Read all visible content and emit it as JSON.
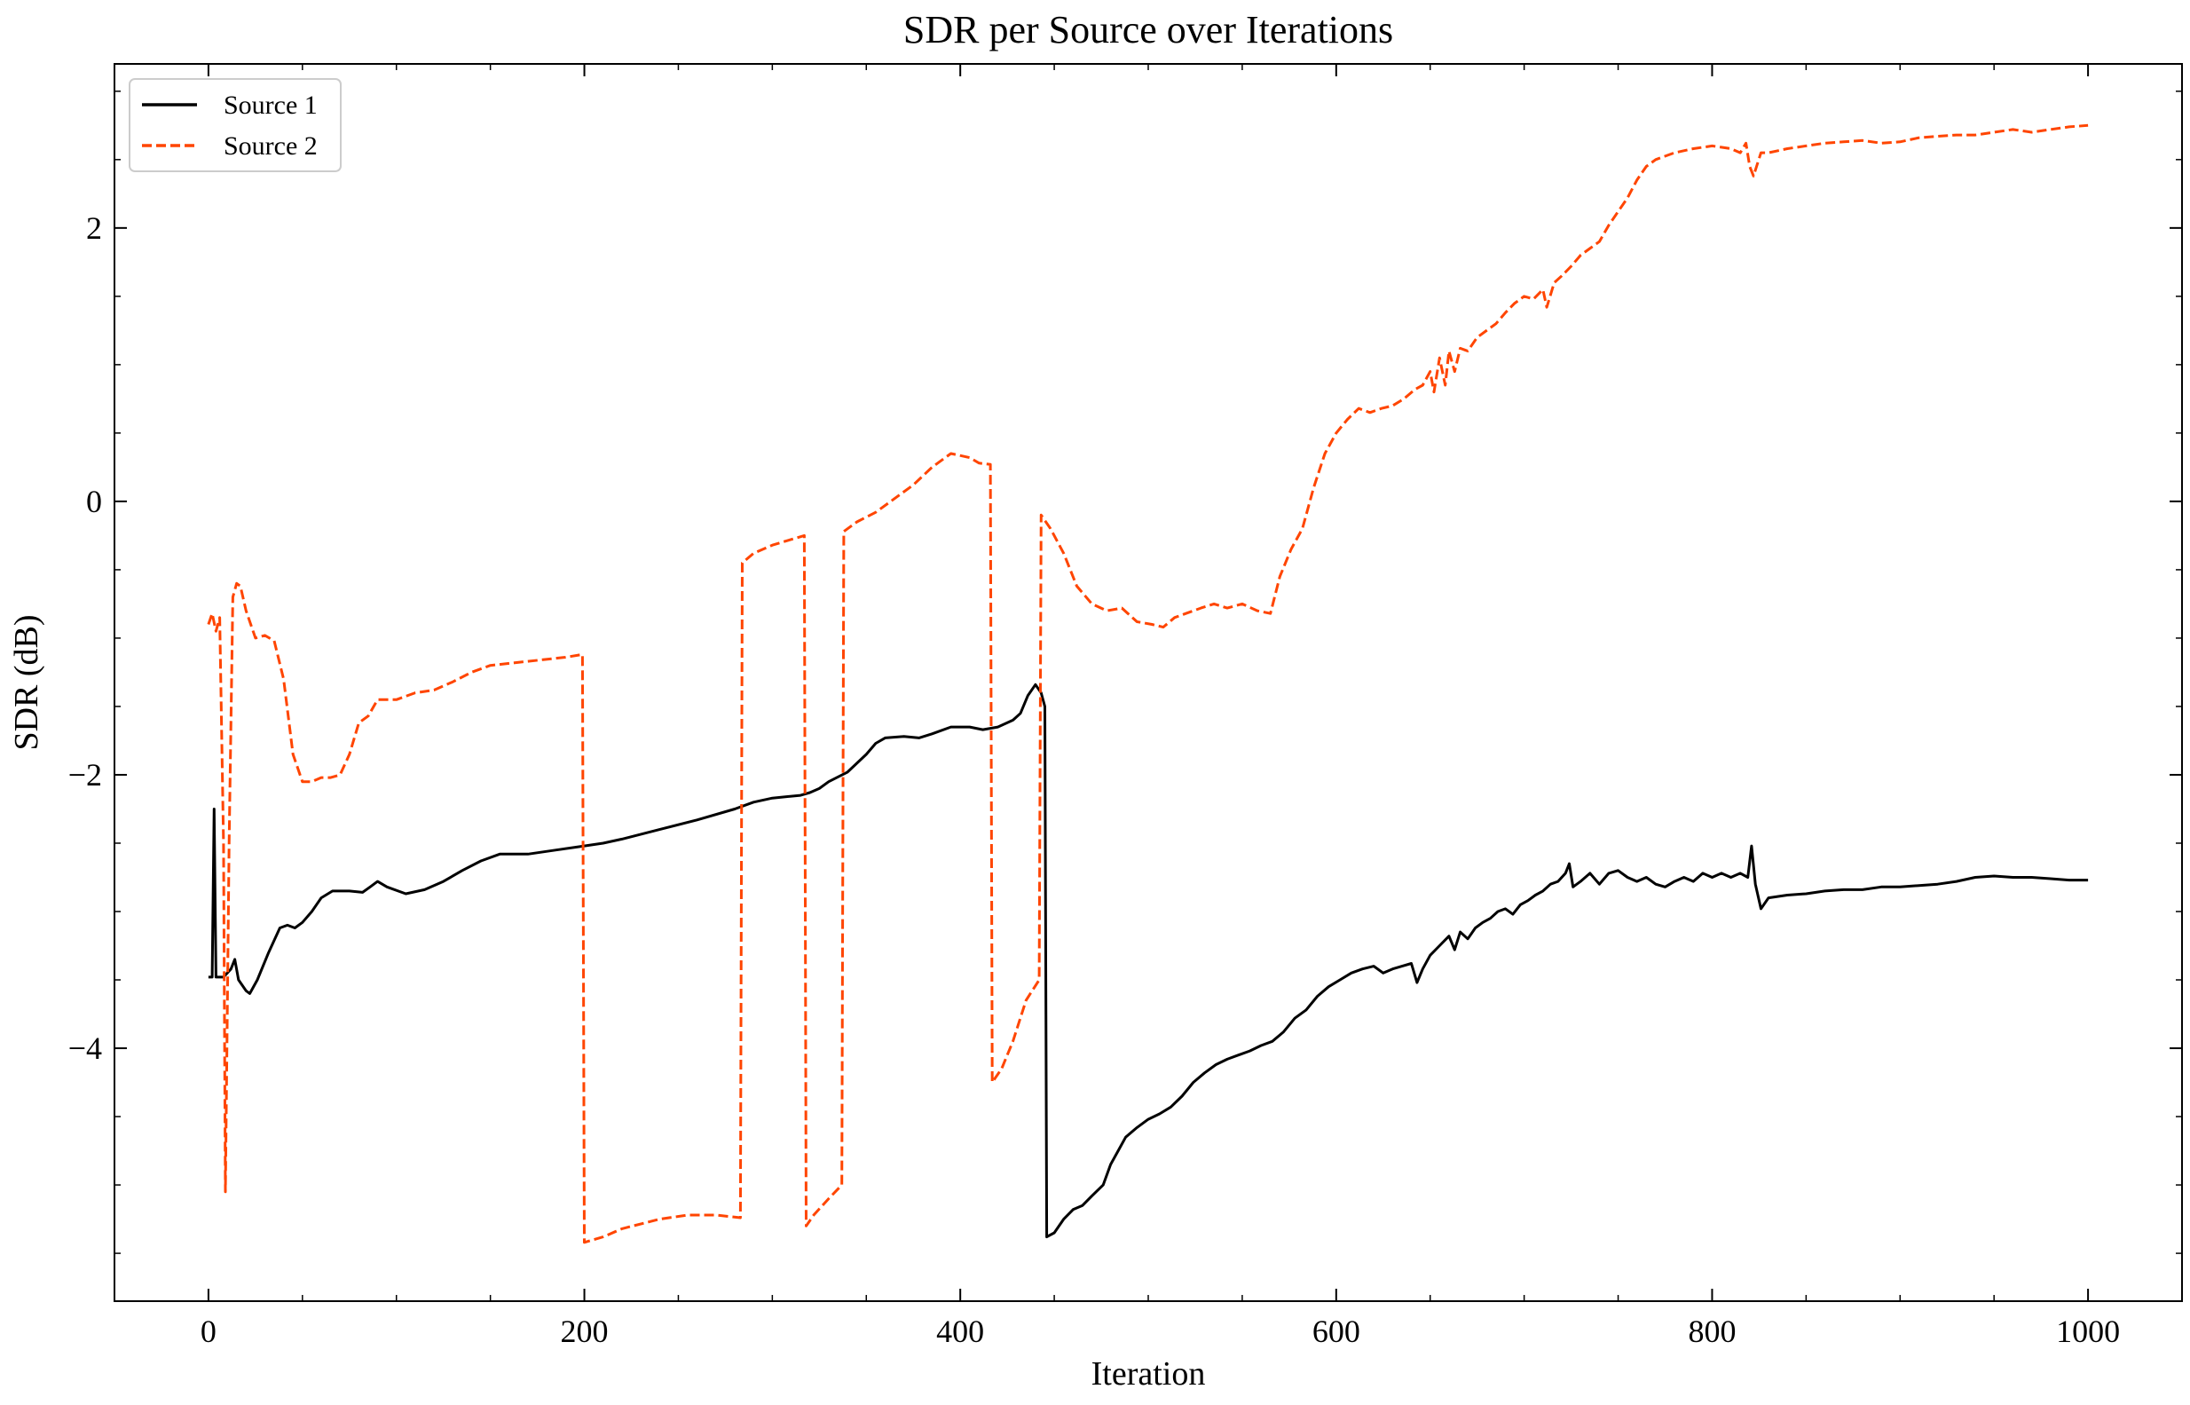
{
  "chart_data": {
    "type": "line",
    "title": "SDR per Source over Iterations",
    "xlabel": "Iteration",
    "ylabel": "SDR (dB)",
    "xlim": [
      -50,
      1050
    ],
    "ylim": [
      -5.85,
      3.2
    ],
    "xticks": [
      0,
      200,
      400,
      600,
      800,
      1000
    ],
    "xtick_labels": [
      "0",
      "200",
      "400",
      "600",
      "800",
      "1000"
    ],
    "yticks": [
      -4,
      -2,
      0,
      2
    ],
    "ytick_labels": [
      "−4",
      "−2",
      "0",
      "2"
    ],
    "grid": false,
    "legend": "top-left",
    "series": [
      {
        "name": "Source 1",
        "color": "#000000",
        "style": "solid",
        "points": [
          [
            0,
            -3.48
          ],
          [
            2,
            -3.48
          ],
          [
            3,
            -2.25
          ],
          [
            4,
            -3.48
          ],
          [
            8,
            -3.48
          ],
          [
            12,
            -3.42
          ],
          [
            14,
            -3.35
          ],
          [
            16,
            -3.5
          ],
          [
            20,
            -3.58
          ],
          [
            22,
            -3.6
          ],
          [
            26,
            -3.5
          ],
          [
            32,
            -3.3
          ],
          [
            38,
            -3.12
          ],
          [
            42,
            -3.1
          ],
          [
            46,
            -3.12
          ],
          [
            50,
            -3.08
          ],
          [
            55,
            -3.0
          ],
          [
            60,
            -2.9
          ],
          [
            66,
            -2.85
          ],
          [
            75,
            -2.85
          ],
          [
            82,
            -2.86
          ],
          [
            86,
            -2.82
          ],
          [
            90,
            -2.78
          ],
          [
            95,
            -2.82
          ],
          [
            105,
            -2.87
          ],
          [
            115,
            -2.84
          ],
          [
            125,
            -2.78
          ],
          [
            135,
            -2.7
          ],
          [
            145,
            -2.63
          ],
          [
            155,
            -2.58
          ],
          [
            170,
            -2.58
          ],
          [
            185,
            -2.55
          ],
          [
            200,
            -2.52
          ],
          [
            210,
            -2.5
          ],
          [
            220,
            -2.47
          ],
          [
            240,
            -2.4
          ],
          [
            260,
            -2.33
          ],
          [
            280,
            -2.25
          ],
          [
            290,
            -2.2
          ],
          [
            300,
            -2.17
          ],
          [
            315,
            -2.15
          ],
          [
            320,
            -2.13
          ],
          [
            325,
            -2.1
          ],
          [
            330,
            -2.05
          ],
          [
            340,
            -1.98
          ],
          [
            350,
            -1.85
          ],
          [
            355,
            -1.77
          ],
          [
            360,
            -1.73
          ],
          [
            370,
            -1.72
          ],
          [
            378,
            -1.73
          ],
          [
            385,
            -1.7
          ],
          [
            395,
            -1.65
          ],
          [
            405,
            -1.65
          ],
          [
            412,
            -1.67
          ],
          [
            420,
            -1.65
          ],
          [
            428,
            -1.6
          ],
          [
            432,
            -1.55
          ],
          [
            436,
            -1.42
          ],
          [
            440,
            -1.34
          ],
          [
            443,
            -1.4
          ],
          [
            445,
            -1.5
          ],
          [
            446,
            -5.38
          ],
          [
            450,
            -5.35
          ],
          [
            455,
            -5.25
          ],
          [
            460,
            -5.18
          ],
          [
            465,
            -5.15
          ],
          [
            470,
            -5.08
          ],
          [
            476,
            -5.0
          ],
          [
            480,
            -4.85
          ],
          [
            484,
            -4.75
          ],
          [
            488,
            -4.65
          ],
          [
            494,
            -4.58
          ],
          [
            500,
            -4.52
          ],
          [
            506,
            -4.48
          ],
          [
            512,
            -4.43
          ],
          [
            518,
            -4.35
          ],
          [
            524,
            -4.25
          ],
          [
            530,
            -4.18
          ],
          [
            536,
            -4.12
          ],
          [
            542,
            -4.08
          ],
          [
            548,
            -4.05
          ],
          [
            554,
            -4.02
          ],
          [
            560,
            -3.98
          ],
          [
            566,
            -3.95
          ],
          [
            572,
            -3.88
          ],
          [
            578,
            -3.78
          ],
          [
            584,
            -3.72
          ],
          [
            590,
            -3.62
          ],
          [
            596,
            -3.55
          ],
          [
            602,
            -3.5
          ],
          [
            608,
            -3.45
          ],
          [
            614,
            -3.42
          ],
          [
            620,
            -3.4
          ],
          [
            625,
            -3.45
          ],
          [
            630,
            -3.42
          ],
          [
            635,
            -3.4
          ],
          [
            640,
            -3.38
          ],
          [
            643,
            -3.52
          ],
          [
            646,
            -3.42
          ],
          [
            650,
            -3.32
          ],
          [
            655,
            -3.25
          ],
          [
            660,
            -3.18
          ],
          [
            663,
            -3.28
          ],
          [
            666,
            -3.15
          ],
          [
            670,
            -3.2
          ],
          [
            674,
            -3.12
          ],
          [
            678,
            -3.08
          ],
          [
            682,
            -3.05
          ],
          [
            686,
            -3.0
          ],
          [
            690,
            -2.98
          ],
          [
            694,
            -3.02
          ],
          [
            698,
            -2.95
          ],
          [
            702,
            -2.92
          ],
          [
            706,
            -2.88
          ],
          [
            710,
            -2.85
          ],
          [
            714,
            -2.8
          ],
          [
            718,
            -2.78
          ],
          [
            722,
            -2.72
          ],
          [
            724,
            -2.65
          ],
          [
            726,
            -2.82
          ],
          [
            730,
            -2.78
          ],
          [
            735,
            -2.72
          ],
          [
            740,
            -2.8
          ],
          [
            745,
            -2.72
          ],
          [
            750,
            -2.7
          ],
          [
            755,
            -2.75
          ],
          [
            760,
            -2.78
          ],
          [
            765,
            -2.75
          ],
          [
            770,
            -2.8
          ],
          [
            775,
            -2.82
          ],
          [
            780,
            -2.78
          ],
          [
            785,
            -2.75
          ],
          [
            790,
            -2.78
          ],
          [
            795,
            -2.72
          ],
          [
            800,
            -2.75
          ],
          [
            805,
            -2.72
          ],
          [
            810,
            -2.75
          ],
          [
            815,
            -2.72
          ],
          [
            819,
            -2.75
          ],
          [
            821,
            -2.52
          ],
          [
            823,
            -2.8
          ],
          [
            826,
            -2.98
          ],
          [
            830,
            -2.9
          ],
          [
            840,
            -2.88
          ],
          [
            850,
            -2.87
          ],
          [
            860,
            -2.85
          ],
          [
            870,
            -2.84
          ],
          [
            880,
            -2.84
          ],
          [
            890,
            -2.82
          ],
          [
            900,
            -2.82
          ],
          [
            910,
            -2.81
          ],
          [
            920,
            -2.8
          ],
          [
            930,
            -2.78
          ],
          [
            940,
            -2.75
          ],
          [
            950,
            -2.74
          ],
          [
            960,
            -2.75
          ],
          [
            970,
            -2.75
          ],
          [
            980,
            -2.76
          ],
          [
            990,
            -2.77
          ],
          [
            1000,
            -2.77
          ]
        ]
      },
      {
        "name": "Source 2",
        "color": "#ff4500",
        "style": "dashed",
        "points": [
          [
            0,
            -0.9
          ],
          [
            2,
            -0.82
          ],
          [
            4,
            -0.95
          ],
          [
            6,
            -0.85
          ],
          [
            8,
            -2.5
          ],
          [
            9,
            -5.05
          ],
          [
            11,
            -2.5
          ],
          [
            13,
            -0.7
          ],
          [
            15,
            -0.6
          ],
          [
            17,
            -0.62
          ],
          [
            20,
            -0.8
          ],
          [
            25,
            -1.0
          ],
          [
            30,
            -0.98
          ],
          [
            35,
            -1.02
          ],
          [
            40,
            -1.3
          ],
          [
            45,
            -1.85
          ],
          [
            50,
            -2.05
          ],
          [
            55,
            -2.05
          ],
          [
            60,
            -2.02
          ],
          [
            65,
            -2.02
          ],
          [
            70,
            -2.0
          ],
          [
            75,
            -1.85
          ],
          [
            80,
            -1.62
          ],
          [
            85,
            -1.57
          ],
          [
            90,
            -1.45
          ],
          [
            100,
            -1.45
          ],
          [
            110,
            -1.4
          ],
          [
            120,
            -1.38
          ],
          [
            130,
            -1.32
          ],
          [
            140,
            -1.25
          ],
          [
            150,
            -1.2
          ],
          [
            170,
            -1.17
          ],
          [
            190,
            -1.14
          ],
          [
            199,
            -1.12
          ],
          [
            200,
            -5.42
          ],
          [
            210,
            -5.38
          ],
          [
            220,
            -5.32
          ],
          [
            240,
            -5.25
          ],
          [
            255,
            -5.22
          ],
          [
            270,
            -5.22
          ],
          [
            283,
            -5.24
          ],
          [
            284,
            -0.45
          ],
          [
            290,
            -0.38
          ],
          [
            300,
            -0.32
          ],
          [
            317,
            -0.25
          ],
          [
            318,
            -5.3
          ],
          [
            322,
            -5.22
          ],
          [
            330,
            -5.1
          ],
          [
            337,
            -5.0
          ],
          [
            338,
            -0.22
          ],
          [
            345,
            -0.15
          ],
          [
            355,
            -0.08
          ],
          [
            365,
            0.02
          ],
          [
            375,
            0.12
          ],
          [
            385,
            0.25
          ],
          [
            395,
            0.35
          ],
          [
            405,
            0.32
          ],
          [
            410,
            0.28
          ],
          [
            416,
            0.27
          ],
          [
            417,
            -4.25
          ],
          [
            422,
            -4.15
          ],
          [
            428,
            -3.95
          ],
          [
            435,
            -3.65
          ],
          [
            442,
            -3.5
          ],
          [
            443,
            -0.1
          ],
          [
            448,
            -0.2
          ],
          [
            455,
            -0.38
          ],
          [
            462,
            -0.62
          ],
          [
            470,
            -0.75
          ],
          [
            478,
            -0.8
          ],
          [
            486,
            -0.78
          ],
          [
            494,
            -0.88
          ],
          [
            502,
            -0.9
          ],
          [
            508,
            -0.92
          ],
          [
            514,
            -0.85
          ],
          [
            520,
            -0.82
          ],
          [
            528,
            -0.78
          ],
          [
            535,
            -0.75
          ],
          [
            542,
            -0.78
          ],
          [
            550,
            -0.75
          ],
          [
            558,
            -0.8
          ],
          [
            565,
            -0.82
          ],
          [
            570,
            -0.55
          ],
          [
            576,
            -0.35
          ],
          [
            582,
            -0.2
          ],
          [
            588,
            0.1
          ],
          [
            594,
            0.35
          ],
          [
            600,
            0.5
          ],
          [
            606,
            0.6
          ],
          [
            612,
            0.68
          ],
          [
            618,
            0.65
          ],
          [
            624,
            0.68
          ],
          [
            630,
            0.7
          ],
          [
            636,
            0.75
          ],
          [
            642,
            0.82
          ],
          [
            646,
            0.85
          ],
          [
            650,
            0.95
          ],
          [
            652,
            0.8
          ],
          [
            655,
            1.05
          ],
          [
            658,
            0.85
          ],
          [
            660,
            1.1
          ],
          [
            663,
            0.95
          ],
          [
            666,
            1.12
          ],
          [
            670,
            1.1
          ],
          [
            675,
            1.2
          ],
          [
            680,
            1.25
          ],
          [
            685,
            1.3
          ],
          [
            690,
            1.38
          ],
          [
            695,
            1.45
          ],
          [
            700,
            1.5
          ],
          [
            705,
            1.48
          ],
          [
            710,
            1.55
          ],
          [
            712,
            1.42
          ],
          [
            716,
            1.6
          ],
          [
            720,
            1.65
          ],
          [
            725,
            1.72
          ],
          [
            730,
            1.8
          ],
          [
            735,
            1.85
          ],
          [
            740,
            1.9
          ],
          [
            745,
            2.02
          ],
          [
            750,
            2.12
          ],
          [
            755,
            2.22
          ],
          [
            760,
            2.35
          ],
          [
            765,
            2.45
          ],
          [
            770,
            2.5
          ],
          [
            780,
            2.55
          ],
          [
            790,
            2.58
          ],
          [
            800,
            2.6
          ],
          [
            810,
            2.58
          ],
          [
            815,
            2.55
          ],
          [
            818,
            2.62
          ],
          [
            820,
            2.45
          ],
          [
            822,
            2.38
          ],
          [
            826,
            2.55
          ],
          [
            830,
            2.55
          ],
          [
            840,
            2.58
          ],
          [
            850,
            2.6
          ],
          [
            860,
            2.62
          ],
          [
            870,
            2.63
          ],
          [
            880,
            2.64
          ],
          [
            890,
            2.62
          ],
          [
            900,
            2.63
          ],
          [
            910,
            2.66
          ],
          [
            920,
            2.67
          ],
          [
            930,
            2.68
          ],
          [
            940,
            2.68
          ],
          [
            950,
            2.7
          ],
          [
            960,
            2.72
          ],
          [
            970,
            2.7
          ],
          [
            980,
            2.72
          ],
          [
            990,
            2.74
          ],
          [
            1000,
            2.75
          ]
        ]
      }
    ]
  }
}
